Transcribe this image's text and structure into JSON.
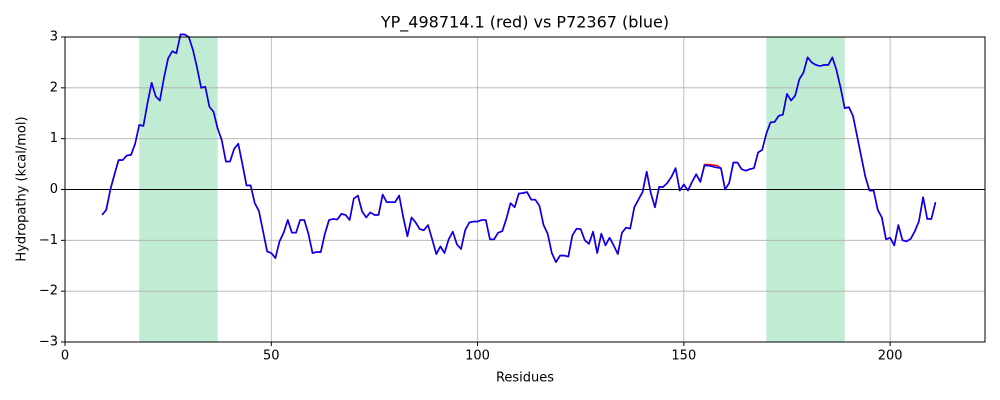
{
  "chart_data": {
    "type": "line",
    "title": "YP_498714.1 (red) vs P72367 (blue)",
    "xlabel": "Residues",
    "ylabel": "Hydropathy (kcal/mol)",
    "xlim": [
      0,
      223
    ],
    "ylim": [
      -3,
      3
    ],
    "xticks": [
      0,
      50,
      100,
      150,
      200
    ],
    "yticks": [
      {
        "value": -3,
        "label": "−3"
      },
      {
        "value": -2,
        "label": "−2"
      },
      {
        "value": -1,
        "label": "−1"
      },
      0,
      1,
      2,
      3
    ],
    "grid": true,
    "axhline": 0,
    "spans": [
      {
        "start": 18,
        "end": 37,
        "color": "#c0ecd3"
      },
      {
        "start": 170,
        "end": 189,
        "color": "#c0ecd3"
      }
    ],
    "x": [
      9,
      10,
      11,
      12,
      13,
      14,
      15,
      16,
      17,
      18,
      19,
      20,
      21,
      22,
      23,
      24,
      25,
      26,
      27,
      28,
      29,
      30,
      31,
      32,
      33,
      34,
      35,
      36,
      37,
      38,
      39,
      40,
      41,
      42,
      43,
      44,
      45,
      46,
      47,
      48,
      49,
      50,
      51,
      52,
      53,
      54,
      55,
      56,
      57,
      58,
      59,
      60,
      61,
      62,
      63,
      64,
      65,
      66,
      67,
      68,
      69,
      70,
      71,
      72,
      73,
      74,
      75,
      76,
      77,
      78,
      79,
      80,
      81,
      82,
      83,
      84,
      85,
      86,
      87,
      88,
      89,
      90,
      91,
      92,
      93,
      94,
      95,
      96,
      97,
      98,
      99,
      100,
      101,
      102,
      103,
      104,
      105,
      106,
      107,
      108,
      109,
      110,
      111,
      112,
      113,
      114,
      115,
      116,
      117,
      118,
      119,
      120,
      121,
      122,
      123,
      124,
      125,
      126,
      127,
      128,
      129,
      130,
      131,
      132,
      133,
      134,
      135,
      136,
      137,
      138,
      139,
      140,
      141,
      142,
      143,
      144,
      145,
      146,
      147,
      148,
      149,
      150,
      151,
      152,
      153,
      154,
      155,
      156,
      157,
      158,
      159,
      160,
      161,
      162,
      163,
      164,
      165,
      166,
      167,
      168,
      169,
      170,
      171,
      172,
      173,
      174,
      175,
      176,
      177,
      178,
      179,
      180,
      181,
      182,
      183,
      184,
      185,
      186,
      187,
      188,
      189,
      190,
      191,
      192,
      193,
      194,
      195,
      196,
      197,
      198,
      199,
      200,
      201,
      202,
      203,
      204,
      205,
      206,
      207,
      208,
      209,
      210,
      211
    ],
    "series": [
      {
        "name": "YP_498714.1",
        "color": "#ff0000",
        "values": [
          -0.5,
          -0.4,
          0.0,
          0.3,
          0.58,
          0.58,
          0.67,
          0.68,
          0.9,
          1.27,
          1.25,
          1.7,
          2.1,
          1.83,
          1.75,
          2.2,
          2.58,
          2.72,
          2.68,
          3.05,
          3.05,
          3.0,
          2.75,
          2.4,
          2.0,
          2.02,
          1.63,
          1.53,
          1.2,
          0.97,
          0.55,
          0.55,
          0.8,
          0.9,
          0.5,
          0.08,
          0.08,
          -0.27,
          -0.42,
          -0.82,
          -1.22,
          -1.25,
          -1.35,
          -1.02,
          -0.85,
          -0.6,
          -0.85,
          -0.85,
          -0.6,
          -0.6,
          -0.87,
          -1.25,
          -1.23,
          -1.23,
          -0.87,
          -0.6,
          -0.58,
          -0.59,
          -0.48,
          -0.5,
          -0.6,
          -0.18,
          -0.12,
          -0.43,
          -0.55,
          -0.45,
          -0.5,
          -0.5,
          -0.1,
          -0.25,
          -0.25,
          -0.25,
          -0.12,
          -0.55,
          -0.92,
          -0.55,
          -0.65,
          -0.78,
          -0.8,
          -0.7,
          -0.98,
          -1.27,
          -1.12,
          -1.25,
          -0.98,
          -0.83,
          -1.08,
          -1.17,
          -0.8,
          -0.65,
          -0.63,
          -0.63,
          -0.6,
          -0.6,
          -0.98,
          -0.98,
          -0.85,
          -0.82,
          -0.57,
          -0.27,
          -0.35,
          -0.08,
          -0.07,
          -0.05,
          -0.2,
          -0.2,
          -0.32,
          -0.7,
          -0.87,
          -1.25,
          -1.43,
          -1.3,
          -1.3,
          -1.32,
          -0.9,
          -0.77,
          -0.78,
          -1.0,
          -1.07,
          -0.83,
          -1.25,
          -0.87,
          -1.1,
          -0.95,
          -1.1,
          -1.27,
          -0.85,
          -0.75,
          -0.77,
          -0.35,
          -0.2,
          -0.05,
          0.35,
          -0.07,
          -0.35,
          0.05,
          0.05,
          0.13,
          0.25,
          0.42,
          -0.02,
          0.1,
          -0.02,
          0.15,
          0.3,
          0.15,
          0.49,
          0.49,
          0.48,
          0.47,
          0.42,
          0.0,
          0.13,
          0.53,
          0.53,
          0.4,
          0.37,
          0.4,
          0.42,
          0.73,
          0.78,
          1.1,
          1.32,
          1.33,
          1.45,
          1.47,
          1.88,
          1.75,
          1.85,
          2.17,
          2.3,
          2.6,
          2.5,
          2.45,
          2.43,
          2.45,
          2.45,
          2.6,
          2.35,
          2.0,
          1.6,
          1.62,
          1.45,
          1.05,
          0.65,
          0.25,
          -0.02,
          -0.02,
          -0.4,
          -0.55,
          -0.98,
          -0.95,
          -1.1,
          -0.7,
          -1.0,
          -1.02,
          -0.97,
          -0.82,
          -0.62,
          -0.15,
          -0.58,
          -0.58,
          -0.25
        ]
      },
      {
        "name": "P72367",
        "color": "#0000ff",
        "values": [
          -0.5,
          -0.4,
          0.0,
          0.3,
          0.58,
          0.58,
          0.67,
          0.68,
          0.9,
          1.27,
          1.25,
          1.7,
          2.1,
          1.83,
          1.75,
          2.2,
          2.58,
          2.72,
          2.68,
          3.05,
          3.05,
          3.0,
          2.75,
          2.4,
          2.0,
          2.02,
          1.63,
          1.53,
          1.2,
          0.97,
          0.55,
          0.55,
          0.8,
          0.9,
          0.5,
          0.08,
          0.08,
          -0.27,
          -0.42,
          -0.82,
          -1.22,
          -1.25,
          -1.35,
          -1.02,
          -0.85,
          -0.6,
          -0.85,
          -0.85,
          -0.6,
          -0.6,
          -0.87,
          -1.25,
          -1.23,
          -1.23,
          -0.87,
          -0.6,
          -0.58,
          -0.59,
          -0.48,
          -0.5,
          -0.6,
          -0.18,
          -0.12,
          -0.43,
          -0.55,
          -0.45,
          -0.5,
          -0.5,
          -0.1,
          -0.25,
          -0.25,
          -0.25,
          -0.12,
          -0.55,
          -0.92,
          -0.55,
          -0.65,
          -0.78,
          -0.8,
          -0.7,
          -0.98,
          -1.27,
          -1.12,
          -1.25,
          -0.98,
          -0.83,
          -1.08,
          -1.17,
          -0.8,
          -0.65,
          -0.63,
          -0.63,
          -0.6,
          -0.6,
          -0.98,
          -0.98,
          -0.85,
          -0.82,
          -0.57,
          -0.27,
          -0.35,
          -0.08,
          -0.07,
          -0.05,
          -0.2,
          -0.2,
          -0.32,
          -0.7,
          -0.87,
          -1.25,
          -1.43,
          -1.3,
          -1.3,
          -1.32,
          -0.9,
          -0.77,
          -0.78,
          -1.0,
          -1.07,
          -0.83,
          -1.25,
          -0.87,
          -1.1,
          -0.95,
          -1.1,
          -1.27,
          -0.85,
          -0.75,
          -0.77,
          -0.35,
          -0.2,
          -0.05,
          0.35,
          -0.07,
          -0.35,
          0.05,
          0.05,
          0.13,
          0.25,
          0.42,
          -0.02,
          0.1,
          -0.02,
          0.15,
          0.3,
          0.15,
          0.47,
          0.47,
          0.45,
          0.43,
          0.42,
          0.0,
          0.13,
          0.53,
          0.53,
          0.4,
          0.37,
          0.4,
          0.42,
          0.73,
          0.78,
          1.1,
          1.32,
          1.33,
          1.45,
          1.47,
          1.88,
          1.75,
          1.85,
          2.17,
          2.3,
          2.6,
          2.5,
          2.45,
          2.43,
          2.45,
          2.45,
          2.6,
          2.35,
          2.0,
          1.6,
          1.62,
          1.45,
          1.05,
          0.65,
          0.25,
          -0.02,
          -0.02,
          -0.4,
          -0.55,
          -0.98,
          -0.95,
          -1.1,
          -0.7,
          -1.0,
          -1.02,
          -0.97,
          -0.82,
          -0.62,
          -0.15,
          -0.58,
          -0.58,
          -0.25
        ]
      }
    ]
  }
}
